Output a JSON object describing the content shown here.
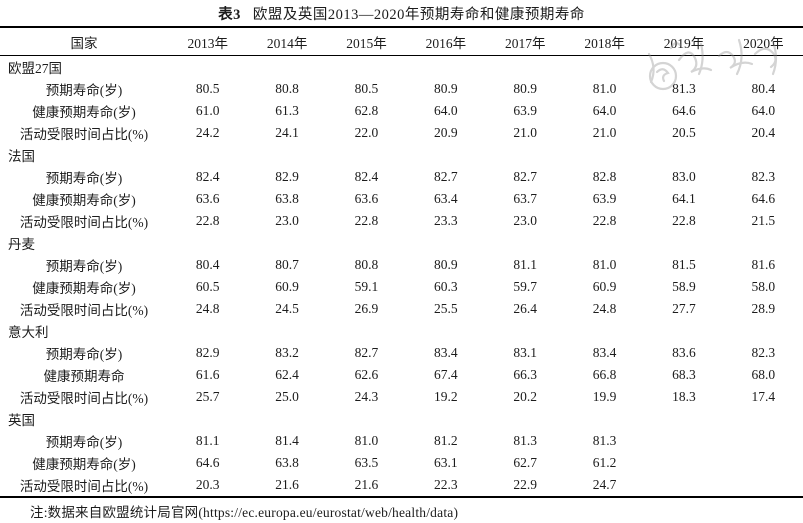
{
  "title": {
    "label": "表3",
    "text": "欧盟及英国2013—2020年预期寿命和健康预期寿命"
  },
  "table": {
    "country_header": "国家",
    "year_headers": [
      "2013年",
      "2014年",
      "2015年",
      "2016年",
      "2017年",
      "2018年",
      "2019年",
      "2020年"
    ],
    "groups": [
      {
        "country": "欧盟27国",
        "rows": [
          {
            "label": "预期寿命(岁)",
            "values": [
              "80.5",
              "80.8",
              "80.5",
              "80.9",
              "80.9",
              "81.0",
              "81.3",
              "80.4"
            ]
          },
          {
            "label": "健康预期寿命(岁)",
            "values": [
              "61.0",
              "61.3",
              "62.8",
              "64.0",
              "63.9",
              "64.0",
              "64.6",
              "64.0"
            ]
          },
          {
            "label": "活动受限时间占比(%)",
            "values": [
              "24.2",
              "24.1",
              "22.0",
              "20.9",
              "21.0",
              "21.0",
              "20.5",
              "20.4"
            ]
          }
        ]
      },
      {
        "country": "法国",
        "rows": [
          {
            "label": "预期寿命(岁)",
            "values": [
              "82.4",
              "82.9",
              "82.4",
              "82.7",
              "82.7",
              "82.8",
              "83.0",
              "82.3"
            ]
          },
          {
            "label": "健康预期寿命(岁)",
            "values": [
              "63.6",
              "63.8",
              "63.6",
              "63.4",
              "63.7",
              "63.9",
              "64.1",
              "64.6"
            ]
          },
          {
            "label": "活动受限时间占比(%)",
            "values": [
              "22.8",
              "23.0",
              "22.8",
              "23.3",
              "23.0",
              "22.8",
              "22.8",
              "21.5"
            ]
          }
        ]
      },
      {
        "country": "丹麦",
        "rows": [
          {
            "label": "预期寿命(岁)",
            "values": [
              "80.4",
              "80.7",
              "80.8",
              "80.9",
              "81.1",
              "81.0",
              "81.5",
              "81.6"
            ]
          },
          {
            "label": "健康预期寿命(岁)",
            "values": [
              "60.5",
              "60.9",
              "59.1",
              "60.3",
              "59.7",
              "60.9",
              "58.9",
              "58.0"
            ]
          },
          {
            "label": "活动受限时间占比(%)",
            "values": [
              "24.8",
              "24.5",
              "26.9",
              "25.5",
              "26.4",
              "24.8",
              "27.7",
              "28.9"
            ]
          }
        ]
      },
      {
        "country": "意大利",
        "rows": [
          {
            "label": "预期寿命(岁)",
            "values": [
              "82.9",
              "83.2",
              "82.7",
              "83.4",
              "83.1",
              "83.4",
              "83.6",
              "82.3"
            ]
          },
          {
            "label": "健康预期寿命",
            "values": [
              "61.6",
              "62.4",
              "62.6",
              "67.4",
              "66.3",
              "66.8",
              "68.3",
              "68.0"
            ]
          },
          {
            "label": "活动受限时间占比(%)",
            "values": [
              "25.7",
              "25.0",
              "24.3",
              "19.2",
              "20.2",
              "19.9",
              "18.3",
              "17.4"
            ]
          }
        ]
      },
      {
        "country": "英国",
        "rows": [
          {
            "label": "预期寿命(岁)",
            "values": [
              "81.1",
              "81.4",
              "81.0",
              "81.2",
              "81.3",
              "81.3",
              "",
              ""
            ]
          },
          {
            "label": "健康预期寿命(岁)",
            "values": [
              "64.6",
              "63.8",
              "63.5",
              "63.1",
              "62.7",
              "61.2",
              "",
              ""
            ]
          },
          {
            "label": "活动受限时间占比(%)",
            "values": [
              "20.3",
              "21.6",
              "21.6",
              "22.3",
              "22.9",
              "24.7",
              "",
              ""
            ]
          }
        ]
      }
    ]
  },
  "note": {
    "text": "注:数据来自欧盟统计局官网(https://ec.europa.eu/eurostat/web/health/data)"
  },
  "watermark": {
    "name": "faint-signature-stamp",
    "color": "#8f8f8f"
  },
  "colors": {
    "text": "#1c1c1c",
    "rule": "#000000",
    "background": "#ffffff"
  }
}
